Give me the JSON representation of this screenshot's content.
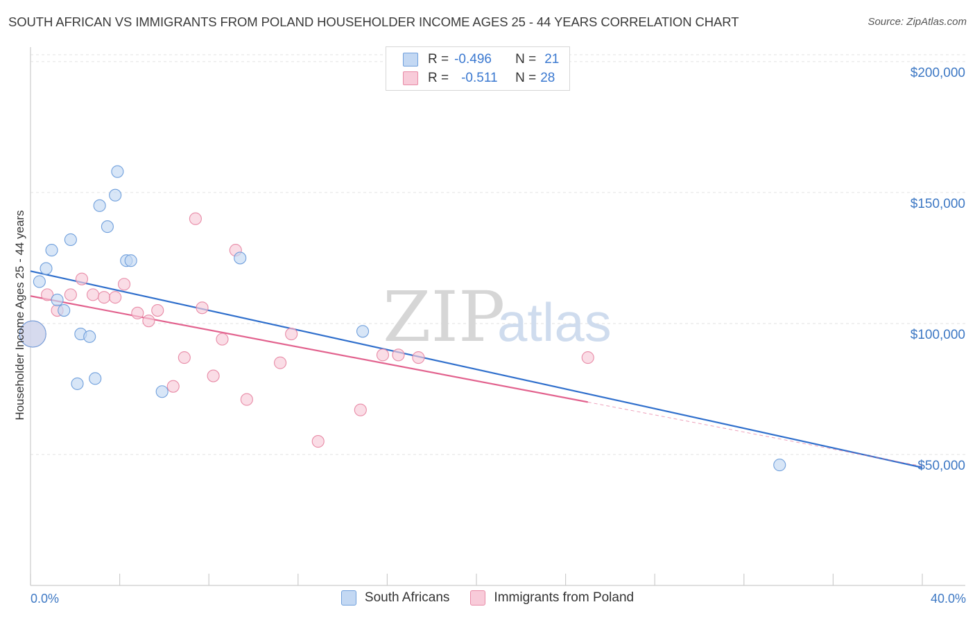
{
  "title": "SOUTH AFRICAN VS IMMIGRANTS FROM POLAND HOUSEHOLDER INCOME AGES 25 - 44 YEARS CORRELATION CHART",
  "source": "Source: ZipAtlas.com",
  "watermark": {
    "zip": "ZIP",
    "atlas": "atlas"
  },
  "colors": {
    "blue_fill": "#c3d8f3",
    "blue_stroke": "#6f9fdc",
    "blue_line": "#2f6fcc",
    "pink_fill": "#f8cbd9",
    "pink_stroke": "#e88aa6",
    "pink_line": "#e2628e",
    "grid": "#e2e2e2",
    "axis": "#cccccc"
  },
  "legend": {
    "rows": [
      {
        "r_label": "R =",
        "r_value": "-0.496",
        "n_label": "N =",
        "n_value": "21"
      },
      {
        "r_label": "R =",
        "r_value": "-0.511",
        "n_label": "N =",
        "n_value": "28"
      }
    ]
  },
  "chart_data": {
    "type": "scatter",
    "title": "SOUTH AFRICAN VS IMMIGRANTS FROM POLAND HOUSEHOLDER INCOME AGES 25 - 44 YEARS CORRELATION CHART",
    "xlabel": "",
    "ylabel": "Householder Income Ages 25 - 44 years",
    "xlim": [
      0,
      40
    ],
    "ylim": [
      0,
      205000
    ],
    "x_tick_labels": [
      "0.0%",
      "40.0%"
    ],
    "y_ticks": [
      {
        "value": 50000,
        "label": "$50,000"
      },
      {
        "value": 100000,
        "label": "$100,000"
      },
      {
        "value": 150000,
        "label": "$150,000"
      },
      {
        "value": 200000,
        "label": "$200,000"
      }
    ],
    "series": [
      {
        "name": "South Africans",
        "points": [
          {
            "x": 0.1,
            "y": 96000,
            "size": "large"
          },
          {
            "x": 0.4,
            "y": 116000
          },
          {
            "x": 0.7,
            "y": 121000
          },
          {
            "x": 0.95,
            "y": 128000
          },
          {
            "x": 1.2,
            "y": 109000
          },
          {
            "x": 1.5,
            "y": 105000
          },
          {
            "x": 1.8,
            "y": 132000
          },
          {
            "x": 2.1,
            "y": 77000
          },
          {
            "x": 2.25,
            "y": 96000
          },
          {
            "x": 2.65,
            "y": 95000
          },
          {
            "x": 2.9,
            "y": 79000
          },
          {
            "x": 3.1,
            "y": 145000
          },
          {
            "x": 3.45,
            "y": 137000
          },
          {
            "x": 3.8,
            "y": 149000
          },
          {
            "x": 3.9,
            "y": 158000
          },
          {
            "x": 4.3,
            "y": 124000
          },
          {
            "x": 4.5,
            "y": 124000
          },
          {
            "x": 5.9,
            "y": 74000
          },
          {
            "x": 9.4,
            "y": 125000
          },
          {
            "x": 14.9,
            "y": 97000
          },
          {
            "x": 33.6,
            "y": 46000
          }
        ],
        "trend": {
          "x0": 0,
          "y0": 120000,
          "x1": 40,
          "y1": 45000
        }
      },
      {
        "name": "Immigrants from Poland",
        "points": [
          {
            "x": 0.1,
            "y": 96000,
            "size": "large"
          },
          {
            "x": 0.75,
            "y": 111000
          },
          {
            "x": 1.2,
            "y": 105000
          },
          {
            "x": 1.8,
            "y": 111000
          },
          {
            "x": 2.3,
            "y": 117000
          },
          {
            "x": 2.8,
            "y": 111000
          },
          {
            "x": 3.3,
            "y": 110000
          },
          {
            "x": 3.8,
            "y": 110000
          },
          {
            "x": 4.2,
            "y": 115000
          },
          {
            "x": 4.8,
            "y": 104000
          },
          {
            "x": 5.3,
            "y": 101000
          },
          {
            "x": 5.7,
            "y": 105000
          },
          {
            "x": 6.4,
            "y": 76000
          },
          {
            "x": 6.9,
            "y": 87000
          },
          {
            "x": 7.4,
            "y": 140000
          },
          {
            "x": 7.7,
            "y": 106000
          },
          {
            "x": 8.2,
            "y": 80000
          },
          {
            "x": 8.6,
            "y": 94000
          },
          {
            "x": 9.2,
            "y": 128000
          },
          {
            "x": 9.7,
            "y": 71000
          },
          {
            "x": 11.2,
            "y": 85000
          },
          {
            "x": 11.7,
            "y": 96000
          },
          {
            "x": 12.9,
            "y": 55000
          },
          {
            "x": 14.8,
            "y": 67000
          },
          {
            "x": 15.8,
            "y": 88000
          },
          {
            "x": 16.5,
            "y": 88000
          },
          {
            "x": 17.4,
            "y": 87000
          },
          {
            "x": 25.0,
            "y": 87000
          }
        ],
        "trend": {
          "x0": 0,
          "y0": 110500,
          "x1": 25,
          "y1": 70000,
          "dash_to_x": 40,
          "dash_to_y": 45500
        }
      }
    ]
  }
}
